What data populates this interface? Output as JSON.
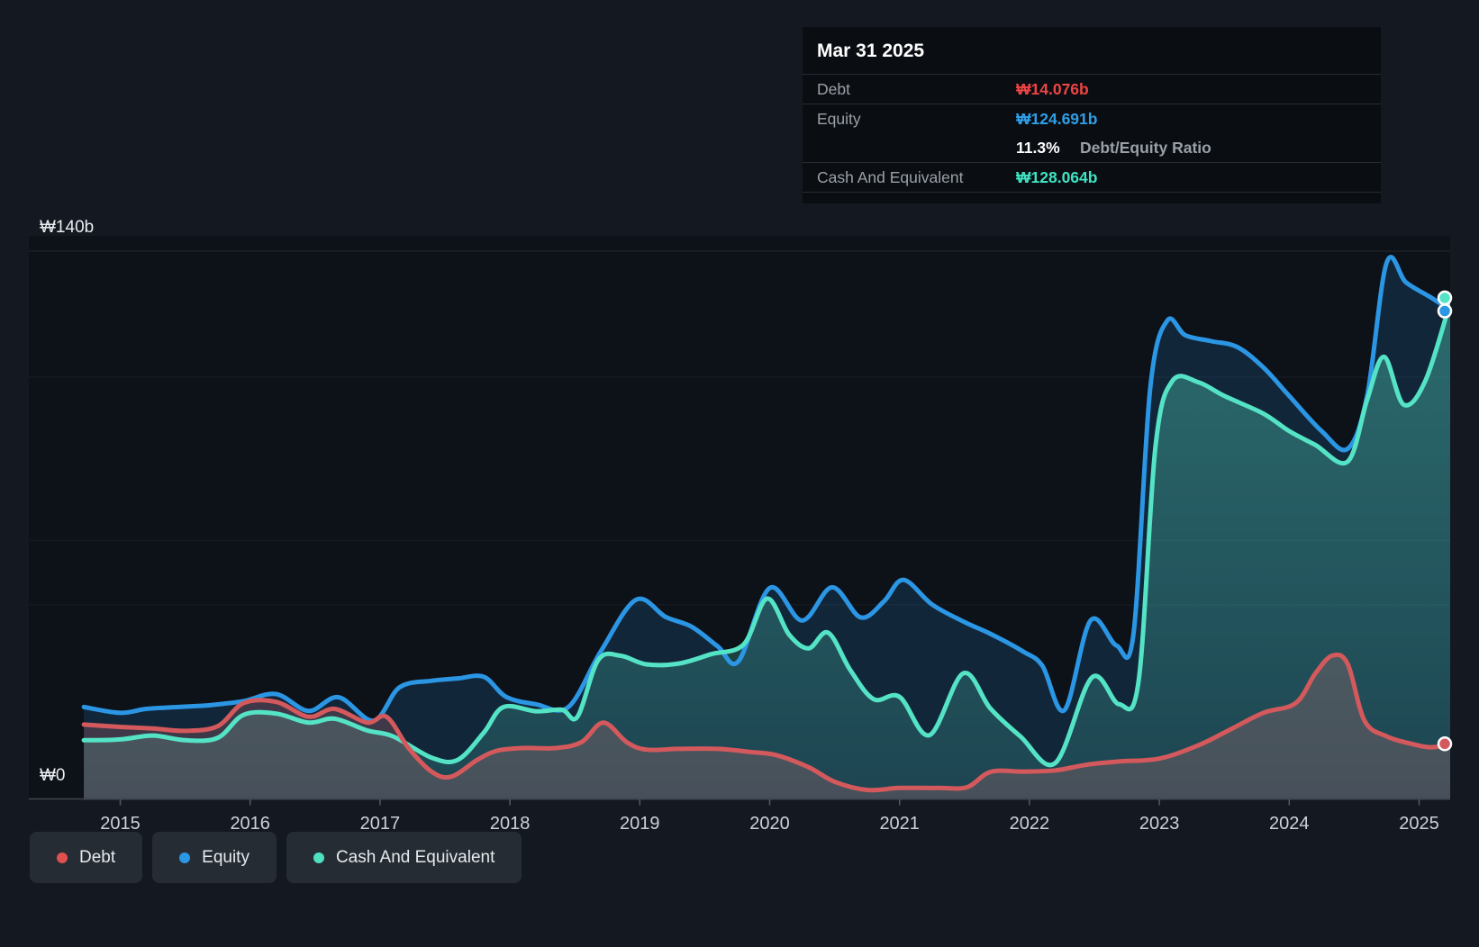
{
  "tooltip": {
    "title": "Mar 31 2025",
    "debt_label": "Debt",
    "debt_value": "₩14.076b",
    "equity_label": "Equity",
    "equity_value": "₩124.691b",
    "ratio_value": "11.3%",
    "ratio_label": "Debt/Equity Ratio",
    "cash_label": "Cash And Equivalent",
    "cash_value": "₩128.064b"
  },
  "axis": {
    "y_top_label": "₩140b",
    "y_zero_label": "₩0",
    "x_years": [
      2015,
      2016,
      2017,
      2018,
      2019,
      2020,
      2021,
      2022,
      2023,
      2024,
      2025
    ]
  },
  "legend": [
    {
      "id": "debt",
      "label": "Debt",
      "color": "#e0504f"
    },
    {
      "id": "equity",
      "label": "Equity",
      "color": "#2b96e4"
    },
    {
      "id": "cash",
      "label": "Cash And Equivalent",
      "color": "#4fe0c2"
    }
  ],
  "colors": {
    "background": "#141820",
    "plot_background": "#0d1118",
    "debt_line": "#d4595c",
    "equity_line": "#2b96e4",
    "cash_line": "#55e3c6",
    "tooltip_debt": "#ef4444",
    "tooltip_equity": "#2f9fe8",
    "tooltip_cash": "#3fe3c3"
  },
  "chart_data": {
    "type": "area",
    "title": "Debt, Equity and Cash history (₩ billions)",
    "unit": "₩b",
    "ylim": [
      0,
      140
    ],
    "x_range": [
      2014.72,
      2025.25
    ],
    "gridline_values": [
      140,
      107.8,
      66.1,
      49.6
    ],
    "legend_position": "bottom-left",
    "series": [
      {
        "name": "Equity",
        "color": "#2b96e4",
        "fill": "rgba(45,140,215,0.18)",
        "points": [
          [
            2014.72,
            23.5
          ],
          [
            2015.0,
            22.0
          ],
          [
            2015.2,
            23.0
          ],
          [
            2015.45,
            23.5
          ],
          [
            2015.7,
            24.0
          ],
          [
            2015.95,
            25.0
          ],
          [
            2016.2,
            26.8
          ],
          [
            2016.45,
            22.5
          ],
          [
            2016.68,
            26.0
          ],
          [
            2016.95,
            20.0
          ],
          [
            2017.15,
            28.5
          ],
          [
            2017.4,
            30.2
          ],
          [
            2017.6,
            30.8
          ],
          [
            2017.8,
            31.2
          ],
          [
            2017.97,
            26.1
          ],
          [
            2018.2,
            24.2
          ],
          [
            2018.45,
            23.5
          ],
          [
            2018.7,
            37.7
          ],
          [
            2018.97,
            50.9
          ],
          [
            2019.2,
            46.5
          ],
          [
            2019.4,
            44.0
          ],
          [
            2019.6,
            39.0
          ],
          [
            2019.76,
            35.2
          ],
          [
            2020.0,
            53.9
          ],
          [
            2020.25,
            45.6
          ],
          [
            2020.48,
            54.1
          ],
          [
            2020.7,
            46.4
          ],
          [
            2020.88,
            50.5
          ],
          [
            2021.03,
            56.0
          ],
          [
            2021.25,
            49.7
          ],
          [
            2021.5,
            45.2
          ],
          [
            2021.7,
            42.2
          ],
          [
            2021.95,
            37.7
          ],
          [
            2022.1,
            34.0
          ],
          [
            2022.27,
            22.7
          ],
          [
            2022.47,
            45.6
          ],
          [
            2022.67,
            39.2
          ],
          [
            2022.8,
            42.0
          ],
          [
            2022.93,
            105.0
          ],
          [
            2023.06,
            122.2
          ],
          [
            2023.2,
            118.5
          ],
          [
            2023.4,
            117.0
          ],
          [
            2023.6,
            115.5
          ],
          [
            2023.8,
            110.3
          ],
          [
            2024.0,
            103.0
          ],
          [
            2024.25,
            94.0
          ],
          [
            2024.45,
            89.5
          ],
          [
            2024.6,
            103.0
          ],
          [
            2024.75,
            137.0
          ],
          [
            2024.9,
            132.0
          ],
          [
            2025.1,
            128.0
          ],
          [
            2025.25,
            124.691
          ]
        ],
        "last_value": 124.691
      },
      {
        "name": "Cash And Equivalent",
        "color": "#55e3c6",
        "fill_top": "rgba(87,230,201,0.36)",
        "fill_bottom": "rgba(87,230,201,0.16)",
        "points": [
          [
            2014.72,
            15.0
          ],
          [
            2015.0,
            15.2
          ],
          [
            2015.25,
            16.2
          ],
          [
            2015.5,
            15.0
          ],
          [
            2015.75,
            15.6
          ],
          [
            2015.95,
            21.5
          ],
          [
            2016.2,
            21.8
          ],
          [
            2016.45,
            19.5
          ],
          [
            2016.65,
            20.5
          ],
          [
            2016.9,
            17.5
          ],
          [
            2017.1,
            16.0
          ],
          [
            2017.4,
            10.5
          ],
          [
            2017.6,
            10.0
          ],
          [
            2017.8,
            17.0
          ],
          [
            2017.95,
            23.5
          ],
          [
            2018.2,
            22.4
          ],
          [
            2018.4,
            22.8
          ],
          [
            2018.52,
            21.0
          ],
          [
            2018.68,
            35.5
          ],
          [
            2018.85,
            36.6
          ],
          [
            2019.05,
            34.4
          ],
          [
            2019.3,
            34.6
          ],
          [
            2019.55,
            37.0
          ],
          [
            2019.8,
            39.5
          ],
          [
            2019.98,
            51.2
          ],
          [
            2020.15,
            42.0
          ],
          [
            2020.3,
            38.5
          ],
          [
            2020.45,
            42.5
          ],
          [
            2020.62,
            33.0
          ],
          [
            2020.8,
            25.5
          ],
          [
            2021.0,
            26.1
          ],
          [
            2021.23,
            16.3
          ],
          [
            2021.49,
            32.1
          ],
          [
            2021.7,
            23.1
          ],
          [
            2021.93,
            16.0
          ],
          [
            2022.2,
            9.2
          ],
          [
            2022.48,
            31.0
          ],
          [
            2022.69,
            24.2
          ],
          [
            2022.84,
            30.0
          ],
          [
            2022.97,
            90.0
          ],
          [
            2023.1,
            106.8
          ],
          [
            2023.3,
            106.5
          ],
          [
            2023.5,
            103.0
          ],
          [
            2023.8,
            98.5
          ],
          [
            2024.0,
            94.0
          ],
          [
            2024.2,
            90.5
          ],
          [
            2024.45,
            86.2
          ],
          [
            2024.6,
            102.0
          ],
          [
            2024.73,
            113.0
          ],
          [
            2024.88,
            100.8
          ],
          [
            2025.05,
            107.0
          ],
          [
            2025.25,
            128.064
          ]
        ],
        "last_value": 128.064
      },
      {
        "name": "Debt",
        "color": "#d4595c",
        "fill": "rgba(224,122,125,0.22)",
        "points": [
          [
            2014.72,
            19.0
          ],
          [
            2015.0,
            18.4
          ],
          [
            2015.25,
            18.0
          ],
          [
            2015.5,
            17.4
          ],
          [
            2015.75,
            18.6
          ],
          [
            2015.95,
            24.5
          ],
          [
            2016.2,
            24.8
          ],
          [
            2016.45,
            21.0
          ],
          [
            2016.65,
            23.0
          ],
          [
            2016.9,
            19.5
          ],
          [
            2017.05,
            21.0
          ],
          [
            2017.22,
            13.0
          ],
          [
            2017.4,
            6.9
          ],
          [
            2017.55,
            5.7
          ],
          [
            2017.75,
            10.0
          ],
          [
            2017.9,
            12.3
          ],
          [
            2018.1,
            13.0
          ],
          [
            2018.35,
            13.0
          ],
          [
            2018.55,
            14.5
          ],
          [
            2018.72,
            19.5
          ],
          [
            2018.9,
            14.5
          ],
          [
            2019.05,
            12.6
          ],
          [
            2019.3,
            12.8
          ],
          [
            2019.6,
            12.8
          ],
          [
            2019.85,
            12.0
          ],
          [
            2020.05,
            11.2
          ],
          [
            2020.3,
            8.1
          ],
          [
            2020.5,
            4.4
          ],
          [
            2020.75,
            2.3
          ],
          [
            2021.0,
            2.8
          ],
          [
            2021.3,
            2.8
          ],
          [
            2021.52,
            3.0
          ],
          [
            2021.7,
            6.9
          ],
          [
            2021.95,
            7.0
          ],
          [
            2022.2,
            7.3
          ],
          [
            2022.45,
            8.8
          ],
          [
            2022.7,
            9.6
          ],
          [
            2023.0,
            10.3
          ],
          [
            2023.3,
            13.7
          ],
          [
            2023.55,
            17.8
          ],
          [
            2023.8,
            22.0
          ],
          [
            2024.05,
            24.5
          ],
          [
            2024.2,
            32.0
          ],
          [
            2024.33,
            36.6
          ],
          [
            2024.45,
            34.5
          ],
          [
            2024.58,
            20.0
          ],
          [
            2024.75,
            16.0
          ],
          [
            2024.95,
            14.0
          ],
          [
            2025.1,
            13.2
          ],
          [
            2025.25,
            14.076
          ]
        ],
        "last_value": 14.076
      }
    ]
  }
}
